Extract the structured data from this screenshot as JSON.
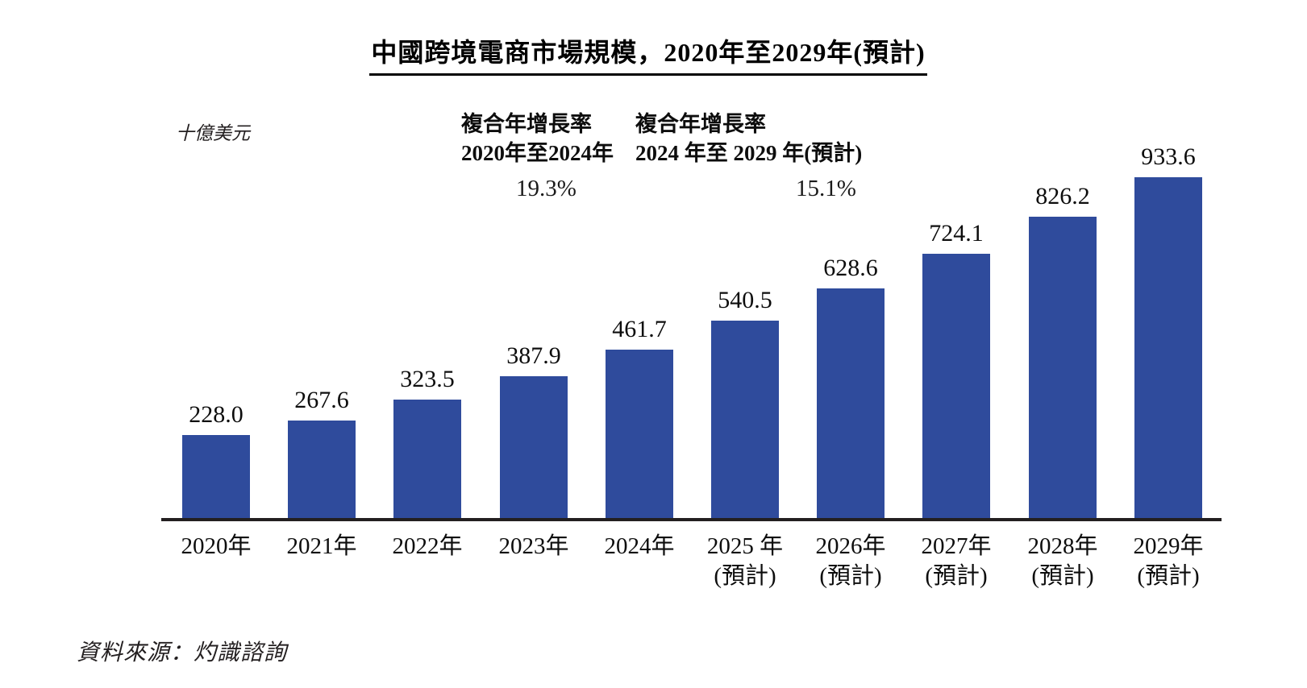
{
  "figure": {
    "title": "中國跨境電商市場規模，2020年至2029年(預計)",
    "unit_label": "十億美元",
    "cagr_annotations": [
      {
        "line1": "複合年增長率",
        "line2": "2020年至2024年",
        "value": "19.3%"
      },
      {
        "line1": "複合年增長率",
        "line2": "2024 年至 2029 年(預計)",
        "value": "15.1%"
      }
    ],
    "source": "資料來源：灼識諮詢"
  },
  "chart_data": {
    "type": "bar",
    "title": "中國跨境電商市場規模，2020年至2029年(預計)",
    "unit": "十億美元",
    "categories": [
      "2020年",
      "2021年",
      "2022年",
      "2023年",
      "2024年",
      "2025 年",
      "2026年",
      "2027年",
      "2028年",
      "2029年"
    ],
    "category_sublabels": [
      "",
      "",
      "",
      "",
      "",
      "(預計)",
      "(預計)",
      "(預計)",
      "(預計)",
      "(預計)"
    ],
    "values": [
      228.0,
      267.6,
      323.5,
      387.9,
      461.7,
      540.5,
      628.6,
      724.1,
      826.2,
      933.6
    ],
    "value_label_format": "one-decimal",
    "bar_color": "#2f4b9c",
    "axis_color": "#231f20",
    "ylim": [
      0,
      960
    ],
    "grid": false,
    "legend": "none",
    "value_labels_shown": true,
    "cagr_2020_2024": "19.3%",
    "cagr_2024_2029": "15.1%"
  }
}
